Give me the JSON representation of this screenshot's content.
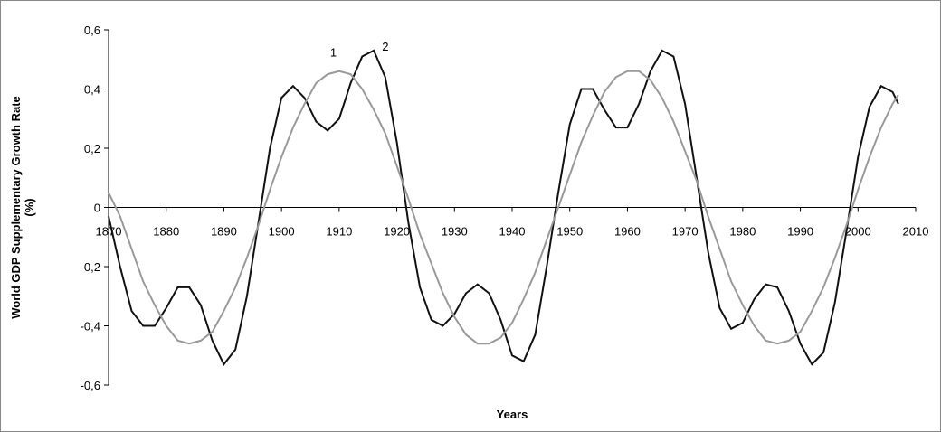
{
  "chart_data": {
    "type": "line",
    "y_label": [
      "World GDP Supplementary Growth Rate",
      "(%)"
    ],
    "x_label": "Years",
    "x": [
      1870,
      1872,
      1874,
      1876,
      1878,
      1880,
      1882,
      1884,
      1886,
      1888,
      1890,
      1892,
      1894,
      1896,
      1898,
      1900,
      1902,
      1904,
      1906,
      1908,
      1910,
      1912,
      1914,
      1916,
      1918,
      1920,
      1922,
      1924,
      1926,
      1928,
      1930,
      1932,
      1934,
      1936,
      1938,
      1940,
      1942,
      1944,
      1946,
      1948,
      1950,
      1952,
      1954,
      1956,
      1958,
      1960,
      1962,
      1964,
      1966,
      1968,
      1970,
      1972,
      1974,
      1976,
      1978,
      1980,
      1982,
      1984,
      1986,
      1988,
      1990,
      1992,
      1994,
      1996,
      1998,
      2000,
      2002,
      2004,
      2006,
      2007
    ],
    "series": [
      {
        "color": "#111111",
        "values": [
          -0.03,
          -0.2,
          -0.35,
          -0.4,
          -0.4,
          -0.34,
          -0.27,
          -0.27,
          -0.33,
          -0.45,
          -0.53,
          -0.48,
          -0.3,
          -0.05,
          0.2,
          0.37,
          0.41,
          0.37,
          0.29,
          0.26,
          0.3,
          0.42,
          0.51,
          0.53,
          0.44,
          0.22,
          -0.05,
          -0.27,
          -0.38,
          -0.4,
          -0.36,
          -0.29,
          -0.26,
          -0.29,
          -0.38,
          -0.5,
          -0.52,
          -0.43,
          -0.2,
          0.05,
          0.28,
          0.4,
          0.4,
          0.33,
          0.27,
          0.27,
          0.35,
          0.46,
          0.53,
          0.51,
          0.35,
          0.1,
          -0.15,
          -0.34,
          -0.41,
          -0.39,
          -0.31,
          -0.26,
          -0.27,
          -0.35,
          -0.46,
          -0.53,
          -0.49,
          -0.32,
          -0.08,
          0.17,
          0.34,
          0.41,
          0.39,
          0.35
        ]
      },
      {
        "color": "#999999",
        "values": [
          0.05,
          -0.03,
          -0.14,
          -0.25,
          -0.33,
          -0.4,
          -0.45,
          -0.46,
          -0.45,
          -0.42,
          -0.35,
          -0.27,
          -0.17,
          -0.06,
          0.06,
          0.17,
          0.27,
          0.35,
          0.42,
          0.45,
          0.46,
          0.45,
          0.4,
          0.33,
          0.25,
          0.14,
          0.03,
          -0.09,
          -0.19,
          -0.29,
          -0.37,
          -0.43,
          -0.46,
          -0.46,
          -0.44,
          -0.39,
          -0.31,
          -0.22,
          -0.11,
          0.0,
          0.11,
          0.22,
          0.31,
          0.39,
          0.44,
          0.46,
          0.46,
          0.43,
          0.37,
          0.29,
          0.19,
          0.09,
          -0.03,
          -0.14,
          -0.25,
          -0.33,
          -0.4,
          -0.45,
          -0.46,
          -0.45,
          -0.42,
          -0.35,
          -0.27,
          -0.17,
          -0.06,
          0.06,
          0.17,
          0.27,
          0.35,
          0.38
        ]
      }
    ],
    "annotations": [
      {
        "text": "1",
        "x": 1909,
        "y": 0.51
      },
      {
        "text": "2",
        "x": 1918,
        "y": 0.53
      }
    ],
    "xlim": [
      1870,
      2010
    ],
    "xticks": [
      1870,
      1880,
      1890,
      1900,
      1910,
      1920,
      1930,
      1940,
      1950,
      1960,
      1970,
      1980,
      1990,
      2000,
      2010
    ],
    "ylim": [
      -0.6,
      0.6
    ],
    "yticks": [
      {
        "value": -0.6,
        "label": "-0,6"
      },
      {
        "value": -0.4,
        "label": "-0,4"
      },
      {
        "value": -0.2,
        "label": "-0,2"
      },
      {
        "value": 0,
        "label": "0"
      },
      {
        "value": 0.2,
        "label": "0,2"
      },
      {
        "value": 0.4,
        "label": "0,4"
      },
      {
        "value": 0.6,
        "label": "0,6"
      }
    ]
  }
}
